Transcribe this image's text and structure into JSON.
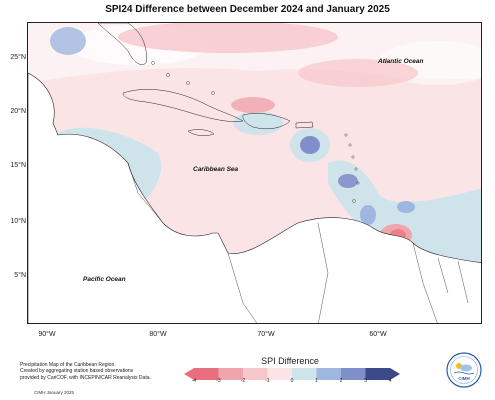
{
  "title": "SPI24 Difference between December 2024 and January 2025",
  "latitude_ticks": [
    "25°N",
    "20°N",
    "15°N",
    "10°N",
    "5°N"
  ],
  "longitude_ticks": [
    "90°W",
    "80°W",
    "70°W",
    "60°W"
  ],
  "region_labels": {
    "atlantic": "Atlantic Ocean",
    "caribbean": "Caribbean Sea",
    "pacific": "Pacific Ocean"
  },
  "legend": {
    "title": "SPI Difference",
    "ticks": [
      "-4",
      "-3",
      "-2",
      "-1",
      "0",
      "1",
      "2",
      "3",
      "4"
    ],
    "colors": {
      "lt_-3": "#e8707e",
      "-3_-2": "#f0a4ac",
      "-2_-1": "#f6c6cb",
      "-1_0": "#fbe4e6",
      "0_1": "#cfe3ea",
      "1_2": "#9fb6e0",
      "2_3": "#7f8fc9",
      "gt_3": "#3d4a8a"
    }
  },
  "footer": {
    "line1": "Precipitation Map of the Caribbean Region.",
    "line2": "Created by aggregating station based observations",
    "line3": "provided by CariCOF, with INCEPIN/CAR Reanalysis Data.",
    "credit": "CIMH January 2025"
  },
  "logo_text": "CIMH"
}
